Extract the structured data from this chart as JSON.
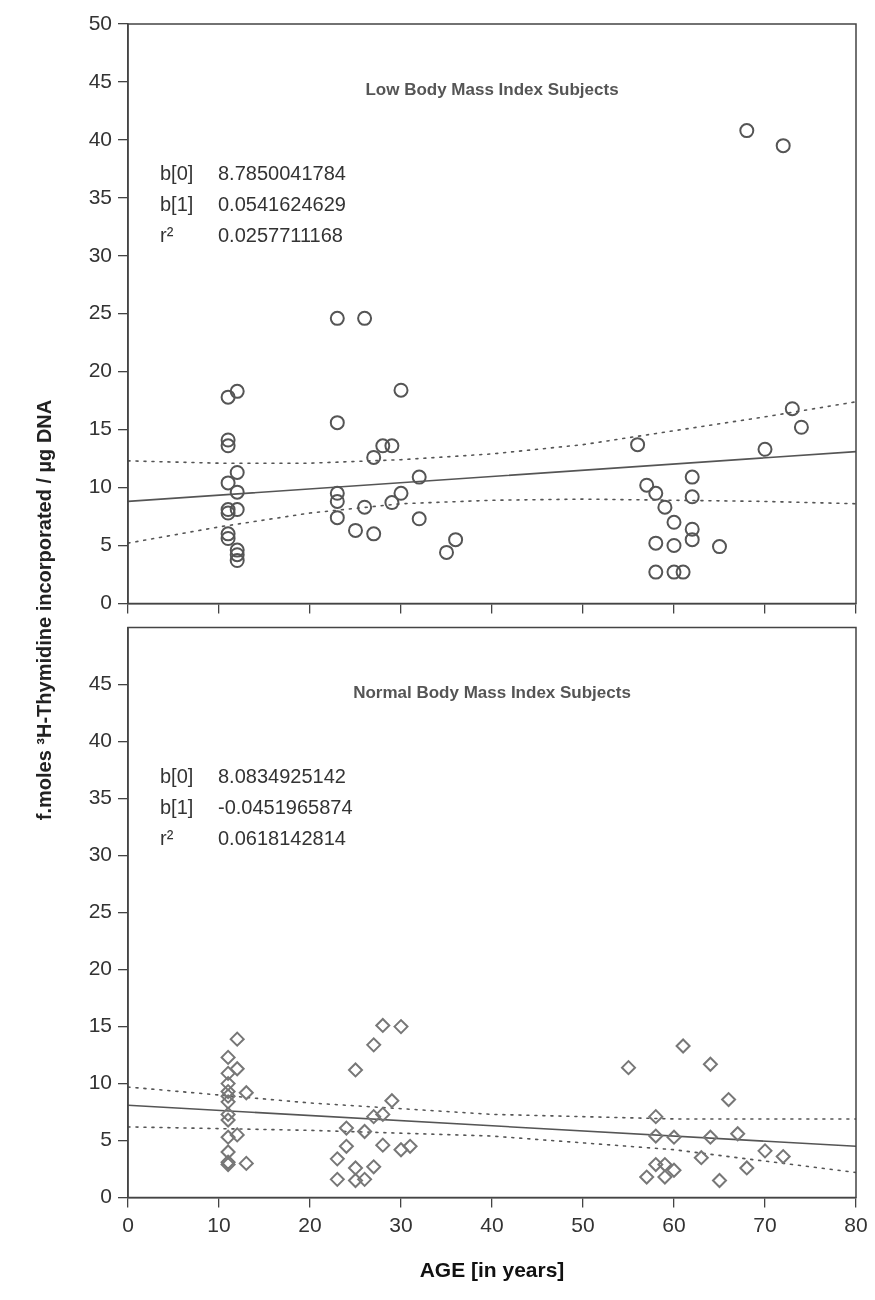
{
  "chart_data": [
    {
      "type": "scatter",
      "title": "Low Body Mass Index Subjects",
      "ylabel": "f.moles ³H-Thymidine incorporated / µg DNA",
      "annotations": [
        "b[0] 8.7850041784",
        "b[1] 0.0541624629",
        "r² 0.0257711168"
      ],
      "xlim": [
        0,
        80
      ],
      "xticks": [
        0,
        10,
        20,
        30,
        40,
        50,
        60,
        70,
        80
      ],
      "ylim": [
        0,
        50
      ],
      "yticks": [
        0,
        5,
        10,
        15,
        20,
        25,
        30,
        35,
        40,
        45,
        50
      ],
      "tick_labels": "y",
      "series": [
        {
          "color": "#555555",
          "marker": "circle",
          "x": [
            11,
            11,
            11,
            11,
            11,
            11,
            11,
            11,
            12,
            12,
            12,
            12,
            12,
            12,
            12,
            23,
            23,
            23,
            23,
            23,
            26,
            26,
            25,
            27,
            27,
            28,
            29,
            29,
            30,
            30,
            32,
            32,
            35,
            36,
            56,
            57,
            58,
            58,
            58,
            59,
            60,
            60,
            60,
            61,
            62,
            62,
            62,
            62,
            65,
            68,
            70,
            72,
            73,
            74
          ],
          "values": [
            17.8,
            14.1,
            13.6,
            10.4,
            8.1,
            7.8,
            6.0,
            5.6,
            18.3,
            11.3,
            9.6,
            8.1,
            4.6,
            4.2,
            3.7,
            24.6,
            15.6,
            9.5,
            8.8,
            7.4,
            24.6,
            8.3,
            6.3,
            12.6,
            6.0,
            13.6,
            13.6,
            8.7,
            18.4,
            9.5,
            10.9,
            7.3,
            4.4,
            5.5,
            13.7,
            10.2,
            9.5,
            5.2,
            2.7,
            8.3,
            7.0,
            5.0,
            2.7,
            2.7,
            10.9,
            9.2,
            6.4,
            5.5,
            4.9,
            40.8,
            13.3,
            39.5,
            16.8,
            15.2
          ]
        },
        {
          "type": "line",
          "color": "#555555",
          "line_style": "solid",
          "marker": "none",
          "x": [
            0,
            80
          ],
          "values": [
            8.8,
            13.1
          ]
        },
        {
          "type": "line",
          "color": "#555555",
          "line_style": "dotted",
          "marker": "none",
          "x": [
            0,
            10,
            20,
            30,
            40,
            50,
            60,
            70,
            80
          ],
          "values": [
            12.3,
            12.1,
            12.1,
            12.4,
            12.9,
            13.7,
            14.9,
            16.1,
            17.4
          ]
        },
        {
          "type": "line",
          "color": "#555555",
          "line_style": "dotted",
          "marker": "none",
          "x": [
            0,
            10,
            20,
            30,
            40,
            50,
            60,
            70,
            80
          ],
          "values": [
            5.2,
            6.6,
            7.8,
            8.6,
            8.9,
            9.0,
            8.9,
            8.8,
            8.6
          ]
        }
      ]
    },
    {
      "type": "scatter",
      "title": "Normal Body Mass Index Subjects",
      "xlabel": "AGE [in years]",
      "annotations": [
        "b[0] 8.0834925142",
        "b[1] -0.0451965874",
        "r² 0.0618142814"
      ],
      "xlim": [
        0,
        80
      ],
      "xticks": [
        0,
        10,
        20,
        30,
        40,
        50,
        60,
        70,
        80
      ],
      "ylim": [
        0,
        50
      ],
      "yticks": [
        0,
        5,
        10,
        15,
        20,
        25,
        30,
        35,
        40,
        45
      ],
      "series": [
        {
          "color": "#777777",
          "marker": "diamond",
          "x": [
            11,
            11,
            11,
            11,
            11,
            11,
            11,
            11,
            11,
            11,
            11,
            11,
            12,
            12,
            12,
            13,
            13,
            23,
            23,
            24,
            24,
            25,
            25,
            25,
            26,
            26,
            27,
            27,
            27,
            28,
            28,
            28,
            29,
            30,
            30,
            31,
            55,
            61,
            64,
            66,
            58,
            58,
            58,
            59,
            59,
            57,
            60,
            60,
            63,
            64,
            67,
            65,
            68,
            70,
            72
          ],
          "values": [
            12.3,
            10.9,
            10.0,
            9.3,
            8.9,
            8.4,
            7.3,
            6.8,
            5.3,
            4.0,
            3.1,
            2.9,
            13.9,
            11.3,
            5.5,
            9.2,
            3.0,
            3.4,
            1.6,
            6.1,
            4.5,
            11.2,
            2.6,
            1.5,
            5.8,
            1.6,
            13.4,
            7.1,
            2.7,
            15.1,
            7.3,
            4.6,
            8.5,
            15.0,
            4.2,
            4.5,
            11.4,
            13.3,
            11.7,
            8.6,
            7.1,
            5.4,
            2.9,
            2.9,
            1.8,
            1.8,
            5.3,
            2.4,
            3.5,
            5.3,
            5.6,
            1.5,
            2.6,
            4.1,
            3.6
          ]
        },
        {
          "type": "line",
          "color": "#555555",
          "line_style": "solid",
          "marker": "none",
          "x": [
            0,
            80
          ],
          "values": [
            8.1,
            4.5
          ]
        },
        {
          "type": "line",
          "color": "#555555",
          "line_style": "dotted",
          "marker": "none",
          "x": [
            0,
            20,
            40,
            60,
            80
          ],
          "values": [
            9.7,
            8.3,
            7.3,
            6.9,
            6.9
          ]
        },
        {
          "type": "line",
          "color": "#555555",
          "line_style": "dotted",
          "marker": "none",
          "x": [
            0,
            20,
            40,
            60,
            80
          ],
          "values": [
            6.2,
            5.9,
            5.4,
            4.2,
            2.2
          ]
        }
      ]
    }
  ]
}
